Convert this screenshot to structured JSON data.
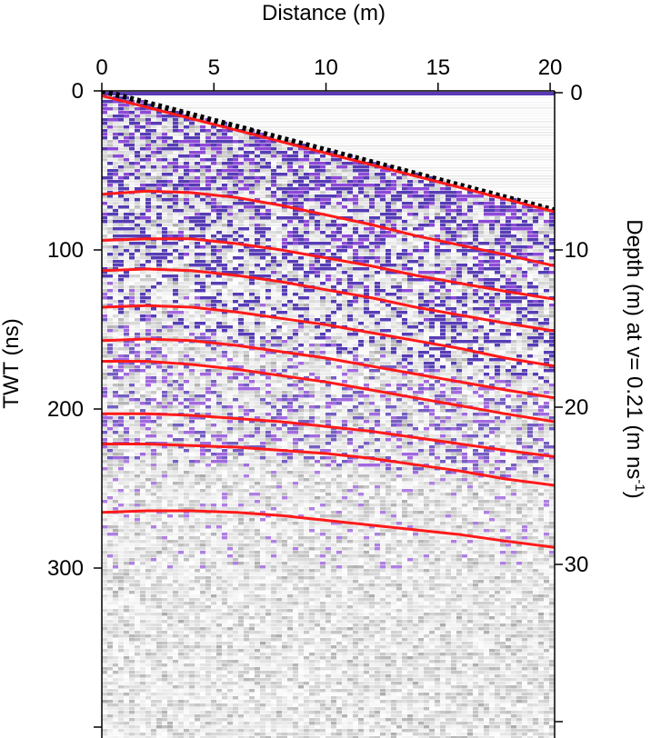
{
  "chart_data": {
    "type": "line",
    "x_axis": {
      "label": "Distance (m)",
      "position": "top",
      "range": [
        0,
        20.2
      ],
      "ticks": [
        0,
        5,
        10,
        15,
        20
      ],
      "tick_labels": [
        "0",
        "5",
        "10",
        "15",
        "20"
      ]
    },
    "y_axis_left": {
      "label": "TWT (ns)",
      "range": [
        0,
        400
      ],
      "inverted": true,
      "ticks": [
        0,
        100,
        200,
        300
      ],
      "tick_labels": [
        "0",
        "100",
        "200",
        "300"
      ]
    },
    "y_axis_right": {
      "label_main": "Depth (m) at v= 0.21 (m ns",
      "label_superscript": "-1",
      "label_end": ")",
      "range": [
        0,
        42
      ],
      "inverted": true,
      "ticks": [
        0,
        10,
        20,
        30,
        40
      ],
      "tick_labels": [
        "0",
        "10",
        "20",
        "30",
        ""
      ]
    },
    "background": "radargram (GPR profile), grayscale with purple/blue high-amplitude reflections",
    "colors": {
      "reflector": "#ff1a1a",
      "surface": "#000000",
      "amplitude_strong": "#3a1aa8",
      "amplitude_mid": "#7a2ad0",
      "surface_band": "#5a3ab5"
    },
    "series": [
      {
        "style": "dotted-black",
        "x": [
          0,
          20.2
        ],
        "y": [
          0,
          75
        ]
      },
      {
        "x": [
          0,
          20.2
        ],
        "y": [
          3,
          76
        ]
      },
      {
        "x": [
          0,
          2,
          4,
          6,
          8,
          10,
          12,
          14,
          16,
          18,
          20.2
        ],
        "y": [
          65,
          63,
          64,
          67,
          72,
          78,
          84,
          91,
          97,
          103,
          110
        ]
      },
      {
        "x": [
          0,
          2,
          4,
          6,
          8,
          10,
          12,
          14,
          16,
          18,
          20.2
        ],
        "y": [
          94,
          93,
          93,
          96,
          100,
          105,
          110,
          116,
          121,
          126,
          131
        ]
      },
      {
        "x": [
          0,
          2,
          4,
          6,
          8,
          10,
          12,
          14,
          16,
          18,
          20.2
        ],
        "y": [
          113,
          112,
          113,
          116,
          120,
          125,
          130,
          136,
          141,
          146,
          151
        ]
      },
      {
        "x": [
          0,
          2,
          4,
          6,
          8,
          10,
          12,
          14,
          16,
          18,
          20.2
        ],
        "y": [
          136,
          135,
          136,
          139,
          143,
          147,
          152,
          157,
          162,
          168,
          173
        ]
      },
      {
        "x": [
          0,
          2,
          4,
          6,
          8,
          10,
          12,
          14,
          16,
          18,
          20.2
        ],
        "y": [
          157,
          156,
          157,
          160,
          164,
          168,
          173,
          178,
          183,
          188,
          193
        ]
      },
      {
        "x": [
          0,
          2,
          4,
          6,
          8,
          10,
          12,
          14,
          16,
          18,
          20.2
        ],
        "y": [
          170,
          170,
          172,
          175,
          179,
          183,
          188,
          193,
          198,
          203,
          208
        ]
      },
      {
        "x": [
          0,
          2,
          4,
          6,
          8,
          10,
          12,
          14,
          16,
          18,
          20.2
        ],
        "y": [
          203,
          203,
          204,
          206,
          208,
          211,
          214,
          218,
          222,
          226,
          230
        ]
      },
      {
        "x": [
          0,
          2,
          4,
          6,
          8,
          10,
          12,
          14,
          16,
          18,
          20.2
        ],
        "y": [
          222,
          222,
          223,
          224,
          226,
          228,
          231,
          235,
          239,
          244,
          248
        ]
      },
      {
        "x": [
          0,
          2,
          4,
          6,
          8,
          10,
          12,
          14,
          16,
          18,
          20.2
        ],
        "y": [
          265,
          264,
          264,
          265,
          267,
          270,
          273,
          276,
          279,
          283,
          287
        ]
      }
    ]
  }
}
